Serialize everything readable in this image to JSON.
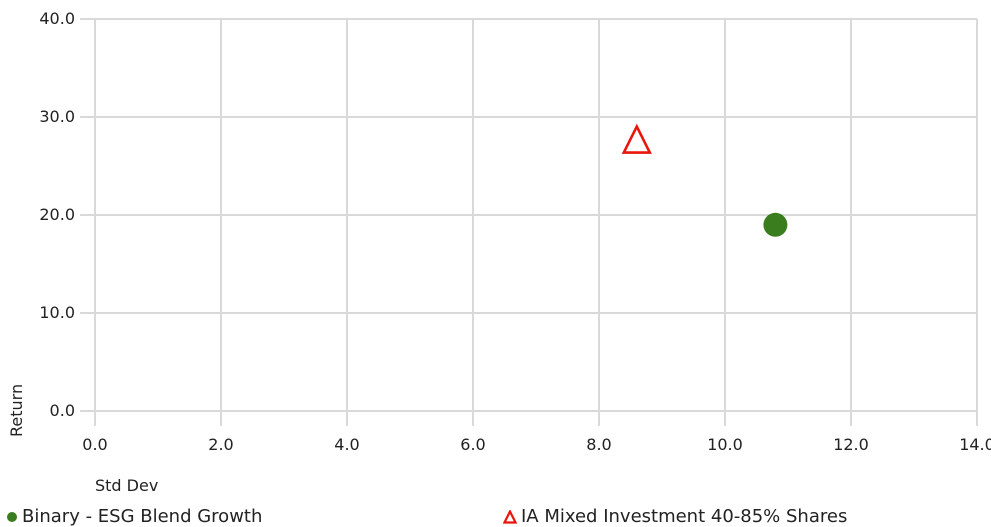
{
  "chart_data": {
    "type": "scatter",
    "title": "",
    "xlabel": "Std Dev",
    "ylabel": "Return",
    "xlim": [
      0,
      14
    ],
    "ylim": [
      0,
      40
    ],
    "x_ticks": [
      "0.0",
      "2.0",
      "4.0",
      "6.0",
      "8.0",
      "10.0",
      "12.0",
      "14.0"
    ],
    "y_ticks": [
      "0.0",
      "10.0",
      "20.0",
      "30.0",
      "40.0"
    ],
    "grid": true,
    "legend_position": "bottom",
    "series": [
      {
        "name": "Binary - ESG Blend Growth",
        "marker": "circle",
        "color": "#3a7d1e",
        "points": [
          {
            "x": 10.8,
            "y": 19.0
          }
        ]
      },
      {
        "name": "IA Mixed Investment 40-85% Shares",
        "marker": "triangle-open",
        "color": "#e8160c",
        "points": [
          {
            "x": 8.6,
            "y": 27.6
          }
        ]
      }
    ]
  }
}
